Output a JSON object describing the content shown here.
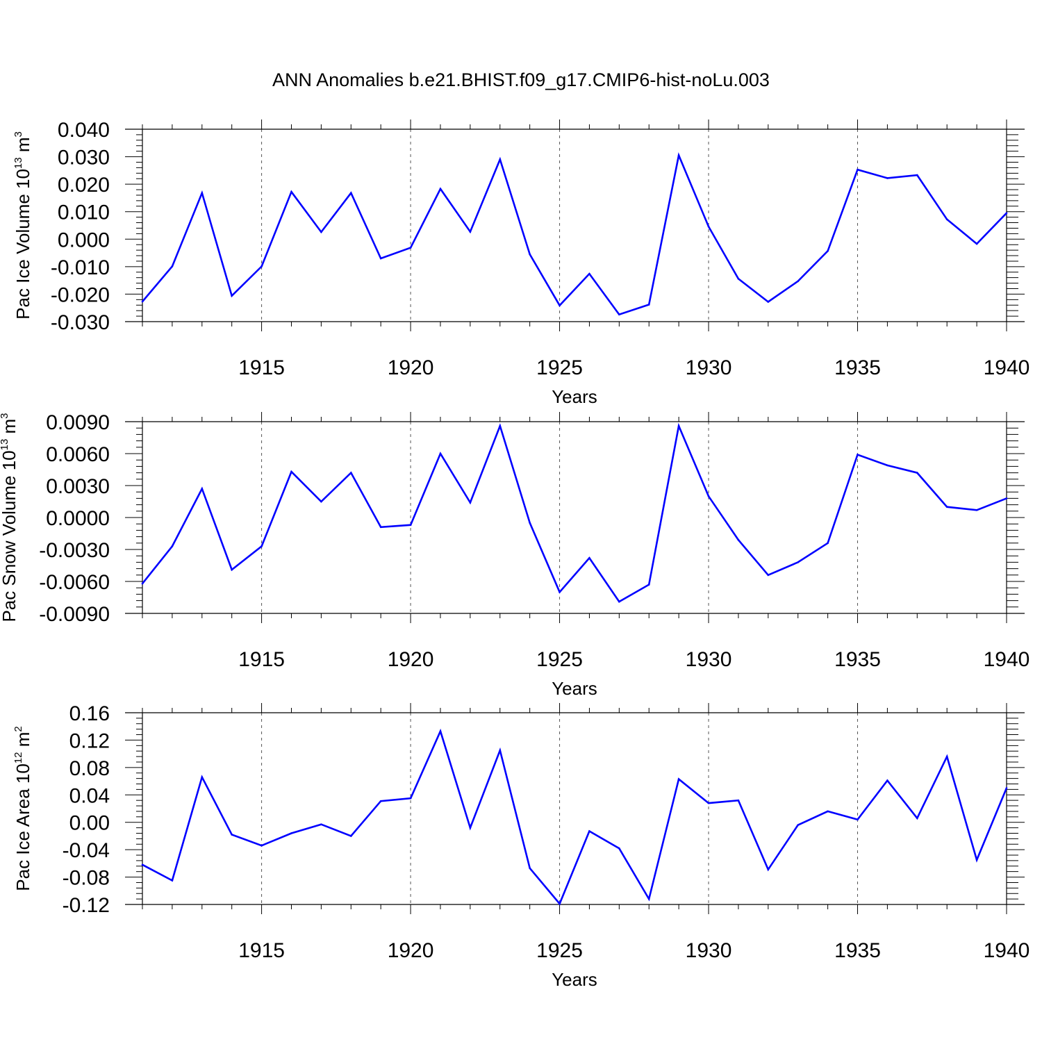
{
  "title": "ANN Anomalies b.e21.BHIST.f09_g17.CMIP6-hist-noLu.003",
  "colors": {
    "line": "#0000ff",
    "axis": "#000000",
    "grid": "#000000"
  },
  "chart_data": [
    {
      "type": "line",
      "xlabel": "Years",
      "ylabel": "Pac Ice Volume 10",
      "ylabel_exp": "13",
      "ylabel_unit": " m",
      "ylabel_unit_exp": "3",
      "xlim": [
        1911,
        1940
      ],
      "ylim": [
        -0.03,
        0.04
      ],
      "yticks": [
        "0.040",
        "0.030",
        "0.020",
        "0.010",
        "0.000",
        "-0.010",
        "-0.020",
        "-0.030"
      ],
      "ytick_values": [
        0.04,
        0.03,
        0.02,
        0.01,
        0.0,
        -0.01,
        -0.02,
        -0.03
      ],
      "xticks": [
        "1915",
        "1920",
        "1925",
        "1930",
        "1935",
        "1940"
      ],
      "xtick_values": [
        1915,
        1920,
        1925,
        1930,
        1935,
        1940
      ],
      "x": [
        1911,
        1912,
        1913,
        1914,
        1915,
        1916,
        1917,
        1918,
        1919,
        1920,
        1921,
        1922,
        1923,
        1924,
        1925,
        1926,
        1927,
        1928,
        1929,
        1930,
        1931,
        1932,
        1933,
        1934,
        1935,
        1936,
        1937,
        1938,
        1939,
        1940
      ],
      "series": [
        {
          "name": "Pac Ice Volume",
          "values": [
            -0.0227,
            -0.0099,
            0.0168,
            -0.0206,
            -0.0099,
            0.0172,
            0.0026,
            0.0168,
            -0.007,
            -0.0031,
            0.0183,
            0.0027,
            0.029,
            -0.0055,
            -0.0241,
            -0.0126,
            -0.0274,
            -0.0238,
            0.0305,
            0.0046,
            -0.0144,
            -0.0228,
            -0.0153,
            -0.0043,
            0.0253,
            0.0222,
            0.0233,
            0.0072,
            -0.0017,
            0.0095
          ]
        }
      ]
    },
    {
      "type": "line",
      "xlabel": "Years",
      "ylabel": "Pac Snow Volume 10",
      "ylabel_exp": "13",
      "ylabel_unit": " m",
      "ylabel_unit_exp": "3",
      "xlim": [
        1911,
        1940
      ],
      "ylim": [
        -0.009,
        0.009
      ],
      "yticks": [
        "0.0090",
        "0.0060",
        "0.0030",
        "0.0000",
        "-0.0030",
        "-0.0060",
        "-0.0090"
      ],
      "ytick_values": [
        0.009,
        0.006,
        0.003,
        0.0,
        -0.003,
        -0.006,
        -0.009
      ],
      "xticks": [
        "1915",
        "1920",
        "1925",
        "1930",
        "1935",
        "1940"
      ],
      "xtick_values": [
        1915,
        1920,
        1925,
        1930,
        1935,
        1940
      ],
      "x": [
        1911,
        1912,
        1913,
        1914,
        1915,
        1916,
        1917,
        1918,
        1919,
        1920,
        1921,
        1922,
        1923,
        1924,
        1925,
        1926,
        1927,
        1928,
        1929,
        1930,
        1931,
        1932,
        1933,
        1934,
        1935,
        1936,
        1937,
        1938,
        1939,
        1940
      ],
      "series": [
        {
          "name": "Pac Snow Volume",
          "values": [
            -0.0062,
            -0.0027,
            0.0027,
            -0.0049,
            -0.0027,
            0.0043,
            0.0015,
            0.0042,
            -0.0009,
            -0.0007,
            0.006,
            0.0014,
            0.0086,
            -0.0005,
            -0.007,
            -0.0038,
            -0.0079,
            -0.0063,
            0.0086,
            0.002,
            -0.0021,
            -0.0054,
            -0.0042,
            -0.0024,
            0.0059,
            0.0049,
            0.0042,
            0.001,
            0.0007,
            0.0018
          ]
        }
      ]
    },
    {
      "type": "line",
      "xlabel": "Years",
      "ylabel": "Pac Ice Area 10",
      "ylabel_exp": "12",
      "ylabel_unit": " m",
      "ylabel_unit_exp": "2",
      "xlim": [
        1911,
        1940
      ],
      "ylim": [
        -0.12,
        0.16
      ],
      "yticks": [
        "0.16",
        "0.12",
        "0.08",
        "0.04",
        "0.00",
        "-0.04",
        "-0.08",
        "-0.12"
      ],
      "ytick_values": [
        0.16,
        0.12,
        0.08,
        0.04,
        0.0,
        -0.04,
        -0.08,
        -0.12
      ],
      "xticks": [
        "1915",
        "1920",
        "1925",
        "1930",
        "1935",
        "1940"
      ],
      "xtick_values": [
        1915,
        1920,
        1925,
        1930,
        1935,
        1940
      ],
      "x": [
        1911,
        1912,
        1913,
        1914,
        1915,
        1916,
        1917,
        1918,
        1919,
        1920,
        1921,
        1922,
        1923,
        1924,
        1925,
        1926,
        1927,
        1928,
        1929,
        1930,
        1931,
        1932,
        1933,
        1934,
        1935,
        1936,
        1937,
        1938,
        1939,
        1940
      ],
      "series": [
        {
          "name": "Pac Ice Area",
          "values": [
            -0.062,
            -0.085,
            0.066,
            -0.018,
            -0.034,
            -0.016,
            -0.003,
            -0.02,
            0.031,
            0.035,
            0.133,
            -0.008,
            0.105,
            -0.067,
            -0.119,
            -0.013,
            -0.038,
            -0.112,
            0.063,
            0.028,
            0.032,
            -0.069,
            -0.004,
            0.016,
            0.004,
            0.061,
            0.006,
            0.096,
            -0.055,
            0.05
          ]
        }
      ]
    }
  ]
}
